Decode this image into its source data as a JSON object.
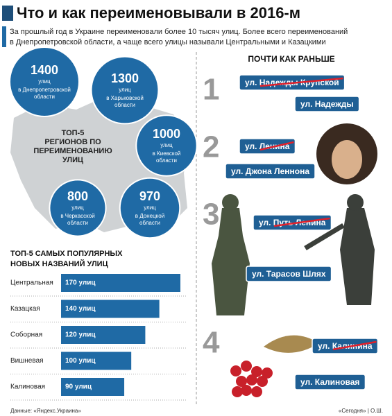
{
  "title": "Что и как переименовывали в 2016-м",
  "subtitle": [
    "За прошлый год в Украине переименовали более 10 тысяч улиц. Более всего переименований",
    "в Днепропетровской области, а чаще всего улицы называли Центральными и Казацкими"
  ],
  "map": {
    "label": [
      "ТОП-5",
      "РЕГИОНОВ ПО",
      "ПЕРЕИМЕНОВАНИЮ",
      "УЛИЦ"
    ],
    "regions": [
      {
        "value": 1400,
        "unit": "улиц",
        "name": [
          "в Днепропетровской",
          "области"
        ]
      },
      {
        "value": 1300,
        "unit": "улиц",
        "name": [
          "в Харьковской",
          "области"
        ]
      },
      {
        "value": 1000,
        "unit": "улиц",
        "name": [
          "в Киевской",
          "области"
        ]
      },
      {
        "value": 800,
        "unit": "улиц",
        "name": [
          "в Черкасской",
          "области"
        ]
      },
      {
        "value": 970,
        "unit": "улиц",
        "name": [
          "в Донецкой",
          "области"
        ]
      }
    ]
  },
  "chart_data": {
    "type": "bar",
    "title": [
      "ТОП-5 САМЫХ ПОПУЛЯРНЫХ",
      "НОВЫХ НАЗВАНИЙ УЛИЦ"
    ],
    "categories": [
      "Центральная",
      "Казацкая",
      "Соборная",
      "Вишневая",
      "Калиновая"
    ],
    "values": [
      170,
      140,
      120,
      100,
      90
    ],
    "value_labels": [
      "170 улиц",
      "140 улиц",
      "120 улиц",
      "100 улиц",
      "90 улиц"
    ],
    "color": "#1f6aa5"
  },
  "renames": {
    "title": "ПОЧТИ КАК РАНЬШЕ",
    "items": [
      {
        "number": "1",
        "old": "ул. Надежды Крупской",
        "new": "ул. Надежды"
      },
      {
        "number": "2",
        "old": "ул. Ленина",
        "new": "ул. Джона Леннона"
      },
      {
        "number": "3",
        "old": "ул. Путь Ленина",
        "new": "ул. Тарасов Шлях"
      },
      {
        "number": "4",
        "old": "ул. Калинина",
        "new": "ул. Калиновая"
      }
    ]
  },
  "footer": {
    "source": "Данные: «Яндекс.Украина»",
    "credit": "«Сегодня» | О.Ш."
  }
}
